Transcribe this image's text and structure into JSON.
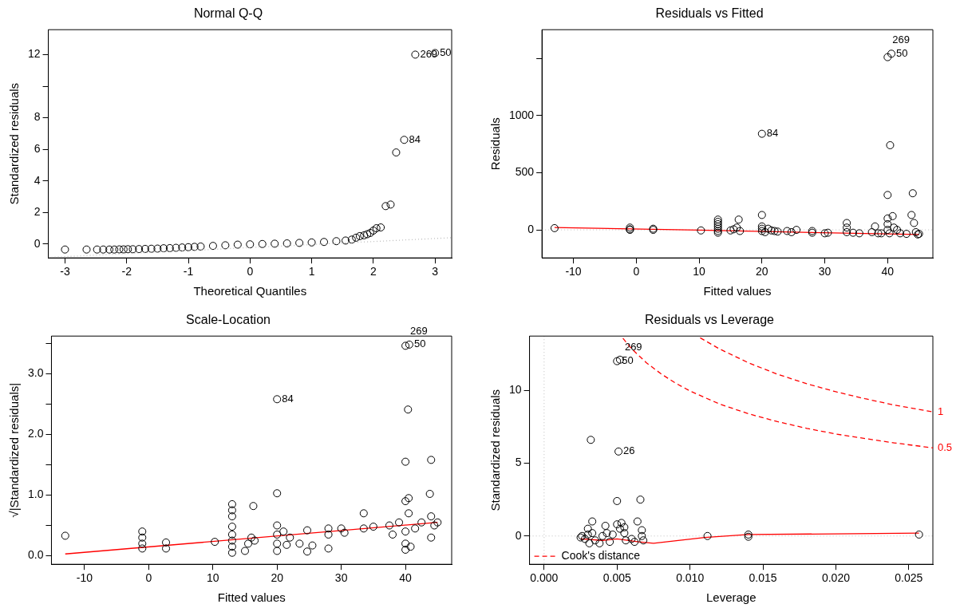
{
  "chart_data": [
    {
      "type": "scatter",
      "title": "Normal Q-Q",
      "xlabel": "Theoretical Quantiles",
      "ylabel": "Standardized residuals",
      "xlim": [
        -3.27,
        3.27
      ],
      "ylim": [
        -0.88,
        13.58
      ],
      "xticks": [
        -3,
        -2,
        -1,
        0,
        1,
        2,
        3
      ],
      "yticks": [
        0,
        2,
        4,
        6,
        8,
        {
          "value": 10,
          "label": null
        },
        12
      ],
      "grid": false,
      "series": [
        {
          "type": "line",
          "color": "#bebebe",
          "line_style": "dotted",
          "x": [
            -3.27,
            3.27
          ],
          "values": [
            -0.85,
            0.4
          ]
        },
        {
          "type": "scatter",
          "color": "#000000",
          "marker": "circle",
          "x": [
            -3.0,
            -2.65,
            -2.48,
            -2.38,
            -2.28,
            -2.2,
            -2.12,
            -2.05,
            -1.98,
            -1.9,
            -1.8,
            -1.7,
            -1.6,
            -1.5,
            -1.4,
            -1.3,
            -1.2,
            -1.1,
            -1.0,
            -0.9,
            -0.8,
            -0.6,
            -0.4,
            -0.2,
            0,
            0.2,
            0.4,
            0.6,
            0.8,
            1.0,
            1.2,
            1.4,
            1.55,
            1.65,
            1.72,
            1.78,
            1.85,
            1.9,
            1.95,
            2.0,
            2.05,
            2.12,
            2.2,
            2.28,
            2.37,
            2.5,
            2.68,
            3.0
          ],
          "values": [
            -0.35,
            -0.35,
            -0.35,
            -0.35,
            -0.35,
            -0.35,
            -0.34,
            -0.34,
            -0.33,
            -0.33,
            -0.32,
            -0.31,
            -0.3,
            -0.29,
            -0.27,
            -0.26,
            -0.24,
            -0.22,
            -0.2,
            -0.18,
            -0.16,
            -0.12,
            -0.08,
            -0.04,
            -0.02,
            0.0,
            0.02,
            0.04,
            0.07,
            0.1,
            0.13,
            0.18,
            0.22,
            0.28,
            0.4,
            0.5,
            0.55,
            0.62,
            0.7,
            0.85,
            1.0,
            1.05,
            2.4,
            2.5,
            5.8,
            6.6,
            12.0,
            12.1
          ]
        }
      ],
      "annotations": [
        {
          "text": "50",
          "x": 3.0,
          "y": 12.1
        },
        {
          "text": "269",
          "x": 2.68,
          "y": 12.0
        },
        {
          "text": "84",
          "x": 2.5,
          "y": 6.6
        }
      ]
    },
    {
      "type": "scatter",
      "title": "Residuals vs Fitted",
      "xlabel": "Fitted values",
      "ylabel": "Residuals",
      "xlim": [
        -15,
        47.2
      ],
      "ylim": [
        -245,
        1750
      ],
      "xticks": [
        -10,
        0,
        10,
        20,
        30,
        40
      ],
      "yticks": [
        0,
        500,
        1000,
        {
          "value": 1500,
          "label": null
        }
      ],
      "grid": false,
      "series": [
        {
          "type": "scatter",
          "color": "#000000",
          "marker": "circle",
          "x": [
            -13,
            -1,
            -1,
            -1,
            2.7,
            2.7,
            10.3,
            13,
            13,
            13,
            13,
            13,
            13,
            13,
            15,
            15.5,
            16,
            16.3,
            16.5,
            20,
            20,
            20,
            20,
            20.5,
            21,
            21.5,
            22,
            22.5,
            24,
            24.7,
            25.5,
            28,
            28,
            30,
            30.5,
            33.5,
            33.5,
            33.5,
            34.5,
            35.5,
            37.5,
            38,
            38.5,
            39,
            40,
            40.6,
            40.4,
            40,
            40,
            40,
            40,
            40.3,
            40.8,
            41,
            41.5,
            42,
            43,
            43.8,
            44,
            44.2,
            44.5,
            45,
            44.8,
            20
          ],
          "values": [
            15,
            20,
            5,
            0,
            10,
            0,
            -5,
            90,
            70,
            50,
            30,
            10,
            -10,
            -25,
            -5,
            5,
            20,
            90,
            -10,
            130,
            30,
            10,
            -10,
            -20,
            10,
            -5,
            -10,
            -15,
            -10,
            -20,
            0,
            -10,
            -25,
            -30,
            -25,
            60,
            20,
            -20,
            -25,
            -30,
            -20,
            30,
            -30,
            -30,
            1510,
            1540,
            740,
            305,
            100,
            50,
            0,
            -30,
            120,
            20,
            0,
            -30,
            -35,
            130,
            320,
            60,
            -20,
            -35,
            -40,
            840
          ]
        },
        {
          "type": "line",
          "color": "#ff0000",
          "x": [
            -13,
            10,
            25,
            45
          ],
          "values": [
            20,
            -2,
            -20,
            -40
          ]
        }
      ],
      "ref_lines": [
        {
          "axis": "y",
          "value": 0,
          "color": "#bebebe",
          "line_style": "dotted"
        }
      ],
      "annotations": [
        {
          "text": "50",
          "x": 40.6,
          "y": 1540
        },
        {
          "text": "269",
          "x": 40,
          "y": 1510
        },
        {
          "text": "84",
          "x": 20,
          "y": 840
        }
      ]
    },
    {
      "type": "scatter",
      "title": "Scale-Location",
      "xlabel": "Fitted values",
      "ylabel": "√|Standardized residuals|",
      "xlim": [
        -15.15,
        47.2
      ],
      "ylim": [
        -0.14,
        3.62
      ],
      "xticks": [
        -10,
        0,
        10,
        20,
        30,
        40
      ],
      "yticks": [
        {
          "value": 0,
          "label": "0.0"
        },
        {
          "value": 0.5,
          "label": null
        },
        {
          "value": 1,
          "label": "1.0"
        },
        {
          "value": 1.5,
          "label": null
        },
        {
          "value": 2,
          "label": "2.0"
        },
        {
          "value": 2.5,
          "label": null
        },
        {
          "value": 3,
          "label": "3.0"
        },
        {
          "value": 3.5,
          "label": null
        }
      ],
      "grid": false,
      "series": [
        {
          "type": "scatter",
          "color": "#000000",
          "marker": "circle",
          "x": [
            -13,
            -1,
            -1,
            -1,
            -1,
            2.7,
            2.7,
            10.3,
            13,
            13,
            13,
            13,
            13,
            13,
            13,
            13,
            15,
            15.5,
            16,
            16.3,
            16.5,
            20,
            20,
            20,
            20,
            20,
            20,
            21,
            21.5,
            22,
            23.5,
            24.7,
            24.7,
            25.5,
            28,
            28,
            28,
            30,
            30.5,
            33.5,
            33.5,
            35,
            37.5,
            38,
            39,
            40,
            40.6,
            40.4,
            40,
            40,
            40.5,
            40.5,
            40,
            40,
            40,
            40.8,
            41.5,
            42.5,
            43.8,
            44,
            44,
            44,
            45,
            44.5
          ],
          "values": [
            0.33,
            0.4,
            0.3,
            0.2,
            0.12,
            0.22,
            0.12,
            0.23,
            0.85,
            0.75,
            0.65,
            0.48,
            0.35,
            0.25,
            0.15,
            0.05,
            0.08,
            0.2,
            0.3,
            0.82,
            0.25,
            1.03,
            2.58,
            0.5,
            0.35,
            0.2,
            0.08,
            0.4,
            0.18,
            0.3,
            0.2,
            0.42,
            0.07,
            0.17,
            0.45,
            0.35,
            0.12,
            0.45,
            0.38,
            0.7,
            0.45,
            0.48,
            0.5,
            0.35,
            0.55,
            3.46,
            3.48,
            2.41,
            1.55,
            0.9,
            0.95,
            0.7,
            0.4,
            0.2,
            0.1,
            0.15,
            0.45,
            0.55,
            1.02,
            1.58,
            0.65,
            0.3,
            0.55,
            0.5
          ]
        },
        {
          "type": "line",
          "color": "#ff0000",
          "x": [
            -13,
            45
          ],
          "values": [
            0.03,
            0.55
          ]
        }
      ],
      "annotations": [
        {
          "text": "50",
          "x": 40.6,
          "y": 3.48
        },
        {
          "text": "269",
          "x": 40,
          "y": 3.46
        },
        {
          "text": "84",
          "x": 20,
          "y": 2.58
        }
      ]
    },
    {
      "type": "scatter",
      "title": "Residuals vs Leverage",
      "xlabel": "Leverage",
      "ylabel": "Standardized residuals",
      "xlim": [
        -0.001,
        0.02665
      ],
      "ylim": [
        -1.94,
        13.72
      ],
      "xticks": [
        {
          "value": 0,
          "label": "0.000"
        },
        {
          "value": 0.005,
          "label": "0.005"
        },
        {
          "value": 0.01,
          "label": "0.010"
        },
        {
          "value": 0.015,
          "label": "0.015"
        },
        {
          "value": 0.02,
          "label": "0.020"
        },
        {
          "value": 0.025,
          "label": "0.025"
        }
      ],
      "yticks": [
        0,
        5,
        10
      ],
      "grid": false,
      "legend": "bottom left",
      "series": [
        {
          "type": "scatter",
          "color": "#000000",
          "marker": "circle",
          "x": [
            0.0025,
            0.0026,
            0.0028,
            0.003,
            0.003,
            0.0031,
            0.0032,
            0.0033,
            0.0033,
            0.0035,
            0.0038,
            0.004,
            0.0042,
            0.0043,
            0.0045,
            0.0047,
            0.005,
            0.0052,
            0.0051,
            0.005,
            0.005,
            0.0052,
            0.0053,
            0.0055,
            0.0055,
            0.0056,
            0.006,
            0.0062,
            0.0064,
            0.0066,
            0.0067,
            0.0067,
            0.0068,
            0.0112,
            0.014,
            0.014,
            0.0257
          ],
          "values": [
            -0.1,
            0,
            -0.2,
            0.1,
            0.5,
            -0.5,
            6.6,
            1.0,
            0.2,
            -0.3,
            -0.5,
            0,
            0.7,
            0.2,
            -0.4,
            0.1,
            12.0,
            12.1,
            5.8,
            2.4,
            0.8,
            0.5,
            0.9,
            0.6,
            0.2,
            -0.3,
            -0.2,
            -0.4,
            1.0,
            2.5,
            0.4,
            0,
            -0.3,
            0,
            0.1,
            -0.05,
            0.1
          ]
        },
        {
          "type": "line",
          "color": "#ff0000",
          "x": [
            0.0025,
            0.004,
            0.005,
            0.0065,
            0.0075,
            0.011,
            0.014,
            0.0257
          ],
          "values": [
            -0.2,
            -0.3,
            -0.2,
            -0.4,
            -0.5,
            -0.1,
            0.1,
            0.2
          ]
        },
        {
          "type": "line",
          "name": "Cook's distance",
          "color": "#ff0000",
          "line_style": "dashed",
          "x": [
            0.0107,
            0.012,
            0.014,
            0.016,
            0.018,
            0.02,
            0.022,
            0.024,
            0.02665
          ],
          "values": [
            13.6,
            12.85,
            11.89,
            11.1,
            10.45,
            9.9,
            9.42,
            8.99,
            8.52
          ]
        },
        {
          "type": "line",
          "color": "#ff0000",
          "line_style": "dashed",
          "x": [
            0.0054,
            0.006,
            0.007,
            0.008,
            0.009,
            0.01,
            0.012,
            0.014,
            0.016,
            0.018,
            0.02,
            0.022,
            0.024,
            0.02665
          ],
          "values": [
            13.57,
            12.85,
            11.9,
            11.14,
            10.5,
            9.95,
            9.07,
            8.39,
            7.85,
            7.39,
            7.0,
            6.69,
            6.39,
            6.05
          ]
        }
      ],
      "ref_lines": [
        {
          "axis": "y",
          "value": 0,
          "color": "#bebebe",
          "line_style": "dotted"
        },
        {
          "axis": "x",
          "value": 0,
          "color": "#bebebe",
          "line_style": "dotted"
        }
      ],
      "annotations": [
        {
          "text": "50",
          "x": 0.005,
          "y": 12.0
        },
        {
          "text": "269",
          "x": 0.0052,
          "y": 12.1
        },
        {
          "text": "26",
          "x": 0.0051,
          "y": 5.8
        },
        {
          "text": "1",
          "x": 0.02665,
          "y": 8.52
        },
        {
          "text": "0.5",
          "x": 0.02665,
          "y": 6.05
        }
      ]
    }
  ]
}
